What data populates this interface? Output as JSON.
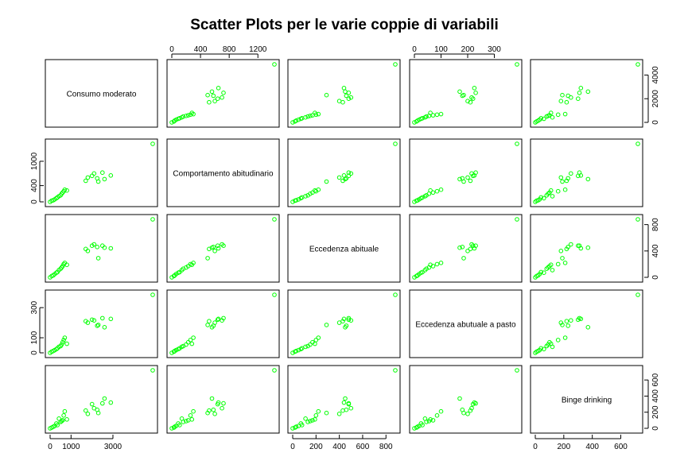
{
  "chart_data": {
    "type": "scatter",
    "title": "Scatter Plots per le varie coppie di variabili",
    "point_color": "#00ff00",
    "variables": [
      {
        "name": "Consumo moderato",
        "range": [
          0,
          4900
        ],
        "ticks": [
          0,
          1000,
          2000,
          3000,
          4000
        ],
        "tick_labels": [
          "0",
          "1000",
          "3000"
        ],
        "tick_label_values": [
          0,
          1000,
          3000
        ]
      },
      {
        "name": "Comportamento abitudinario",
        "range": [
          0,
          1430
        ],
        "ticks": [
          0,
          400,
          1000,
          1200
        ],
        "tick_labels": [
          "0",
          "400",
          "1000",
          "1200"
        ],
        "tick_label_values": [
          0,
          400,
          1000,
          1200
        ]
      },
      {
        "name": "Eccedenza abituale",
        "range": [
          0,
          880
        ],
        "ticks": [
          0,
          200,
          400,
          600,
          800
        ],
        "tick_labels": [
          "0",
          "200",
          "400",
          "600",
          "800"
        ],
        "tick_label_values": [
          0,
          200,
          400,
          600,
          800
        ]
      },
      {
        "name": "Eccedenza  abutuale a pasto",
        "range": [
          0,
          385
        ],
        "ticks": [
          0,
          100,
          200,
          300
        ],
        "tick_labels": [
          "0",
          "100",
          "200",
          "300"
        ],
        "tick_label_values": [
          0,
          100,
          200,
          300
        ]
      },
      {
        "name": "Binge drinking",
        "range": [
          0,
          720
        ],
        "ticks": [
          0,
          200,
          400,
          600
        ],
        "tick_labels": [
          "0",
          "200",
          "400",
          "600"
        ],
        "tick_label_values": [
          0,
          200,
          400,
          600
        ]
      }
    ],
    "axes_labels": {
      "top": [
        1,
        3
      ],
      "right": [
        0,
        2,
        4
      ],
      "left": [
        1,
        3
      ],
      "bottom": [
        0,
        2,
        4
      ],
      "right_labels": {
        "0": [
          "0",
          "2000",
          "4000"
        ],
        "2": [
          "0",
          "400",
          "800"
        ],
        "4": [
          "0",
          "200",
          "400",
          "600"
        ]
      },
      "bottom_labels": {
        "0": [
          "0",
          "1000",
          "3000"
        ],
        "2": [
          "0",
          "200",
          "400",
          "600",
          "800"
        ],
        "4": [
          "0",
          "200",
          "400",
          "600"
        ]
      },
      "top_labels": {
        "1": [
          "0",
          "400",
          "800",
          "1200"
        ],
        "3": [
          "0",
          "100",
          "200",
          "300"
        ]
      },
      "left_labels": {
        "1": [
          "0",
          "400",
          "1000"
        ],
        "3": [
          "0",
          "100",
          "300"
        ]
      }
    },
    "observations": [
      [
        0,
        0,
        0,
        0,
        0
      ],
      [
        80,
        30,
        20,
        8,
        10
      ],
      [
        150,
        40,
        30,
        12,
        20
      ],
      [
        220,
        60,
        50,
        18,
        30
      ],
      [
        300,
        90,
        70,
        25,
        60
      ],
      [
        350,
        110,
        80,
        30,
        40
      ],
      [
        420,
        140,
        110,
        40,
        120
      ],
      [
        500,
        160,
        130,
        45,
        80
      ],
      [
        550,
        200,
        150,
        55,
        90
      ],
      [
        600,
        230,
        170,
        70,
        100
      ],
      [
        650,
        260,
        200,
        85,
        160
      ],
      [
        700,
        300,
        220,
        100,
        210
      ],
      [
        800,
        280,
        190,
        60,
        110
      ],
      [
        1700,
        520,
        430,
        210,
        220
      ],
      [
        1800,
        600,
        400,
        200,
        180
      ],
      [
        2000,
        640,
        480,
        220,
        300
      ],
      [
        2100,
        700,
        500,
        215,
        250
      ],
      [
        2250,
        580,
        460,
        180,
        230
      ],
      [
        2300,
        500,
        290,
        185,
        190
      ],
      [
        2500,
        720,
        480,
        230,
        310
      ],
      [
        2600,
        560,
        450,
        170,
        370
      ],
      [
        2900,
        650,
        440,
        225,
        320
      ],
      [
        4900,
        1430,
        880,
        385,
        720
      ]
    ]
  }
}
